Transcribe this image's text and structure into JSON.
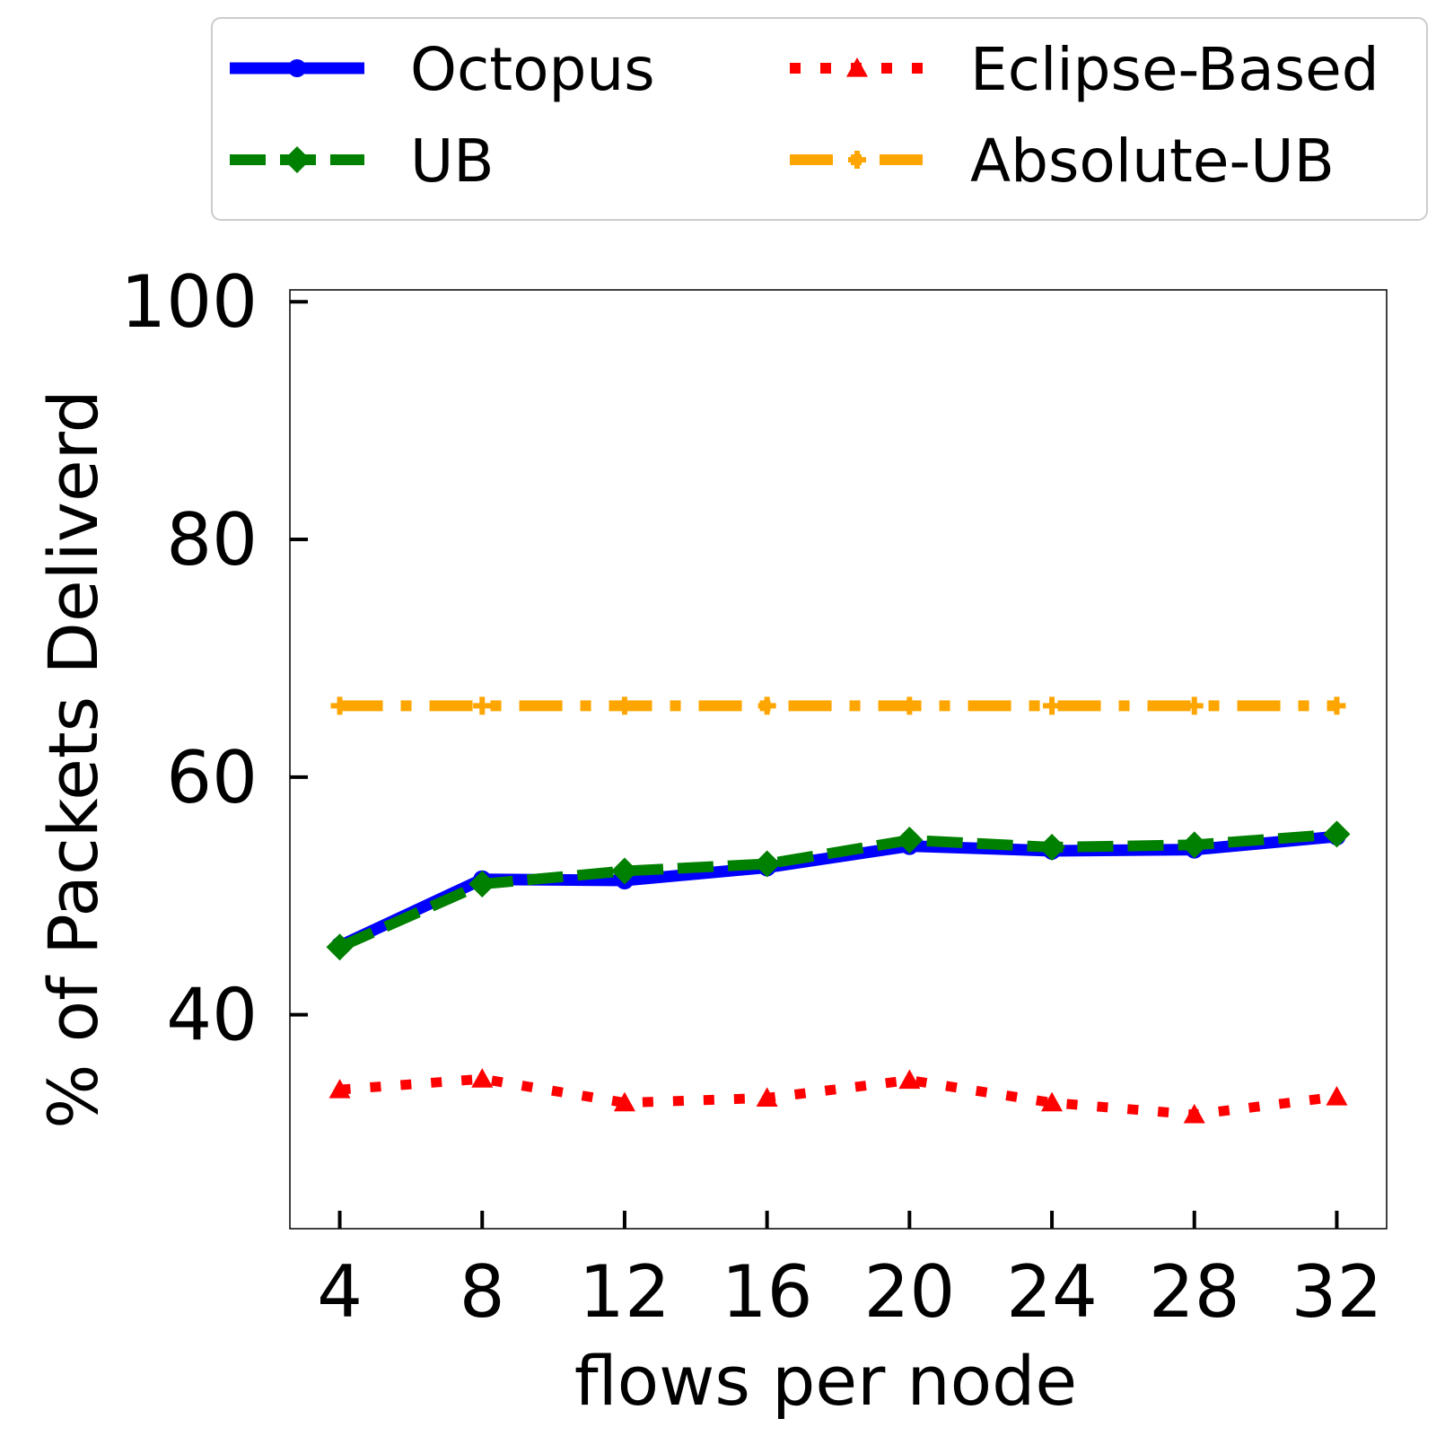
{
  "chart_data": {
    "type": "line",
    "xlabel": "flows per node",
    "ylabel": "% of Packets Deliverd",
    "x": [
      4,
      8,
      12,
      16,
      20,
      24,
      28,
      32
    ],
    "xticks": [
      "4",
      "8",
      "12",
      "16",
      "20",
      "24",
      "28",
      "32"
    ],
    "yticks": [
      "40",
      "60",
      "80",
      "100"
    ],
    "ytick_values": [
      40,
      60,
      80,
      100
    ],
    "xlim": [
      2.6,
      33.4
    ],
    "ylim": [
      22,
      101
    ],
    "grid": false,
    "legend_position": "top, outside plot, two columns",
    "series": [
      {
        "name": "Octopus",
        "color": "#0000ff",
        "style": "solid",
        "marker": "circle",
        "values": [
          45.8,
          51.4,
          51.3,
          52.4,
          54.2,
          53.8,
          53.9,
          55.0
        ]
      },
      {
        "name": "UB",
        "color": "#008000",
        "style": "dashed",
        "marker": "diamond",
        "values": [
          45.7,
          51.0,
          52.1,
          52.7,
          54.7,
          54.1,
          54.3,
          55.2
        ]
      },
      {
        "name": "Eclipse-Based",
        "color": "#ff0000",
        "style": "dotted",
        "marker": "triangle",
        "values": [
          33.7,
          34.6,
          32.6,
          33.0,
          34.5,
          32.6,
          31.6,
          33.1
        ]
      },
      {
        "name": "Absolute-UB",
        "color": "#ffa500",
        "style": "dashdot",
        "marker": "plus",
        "values": [
          66.0,
          66.0,
          66.0,
          66.0,
          66.0,
          66.0,
          66.0,
          66.0
        ]
      }
    ]
  }
}
